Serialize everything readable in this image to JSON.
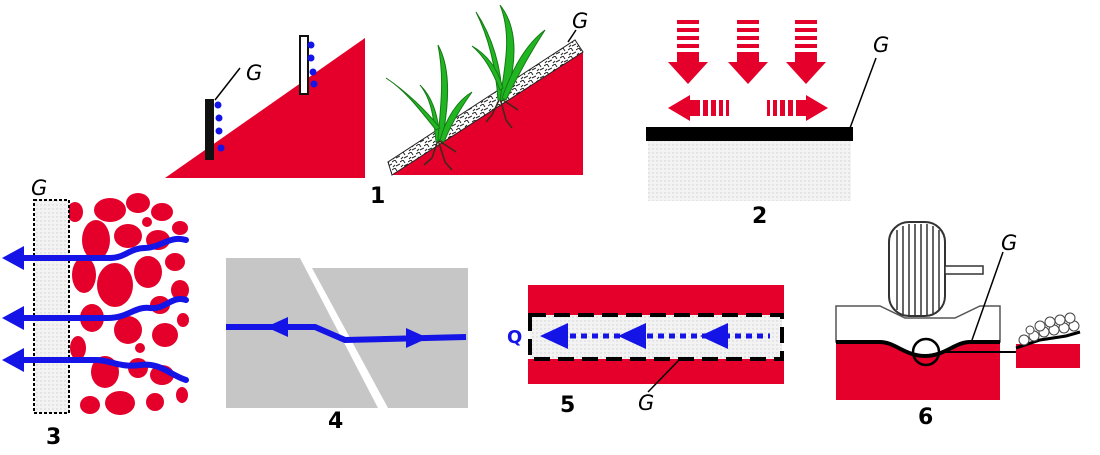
{
  "colors": {
    "soil": "#e4002b",
    "water": "#1414e6",
    "geotextile": "#000000",
    "fill": "#ececec",
    "grey_block": "#c6c6c6",
    "plant": "#22b522"
  },
  "panels": [
    {
      "number": "1",
      "geotextile_label": "G"
    },
    {
      "number": "2",
      "geotextile_label": "G"
    },
    {
      "number": "3",
      "geotextile_label": "G"
    },
    {
      "number": "4"
    },
    {
      "number": "5",
      "geotextile_label": "G",
      "flow_label": "Q"
    },
    {
      "number": "6",
      "geotextile_label": "G"
    }
  ],
  "panel1_extra_label": "G"
}
